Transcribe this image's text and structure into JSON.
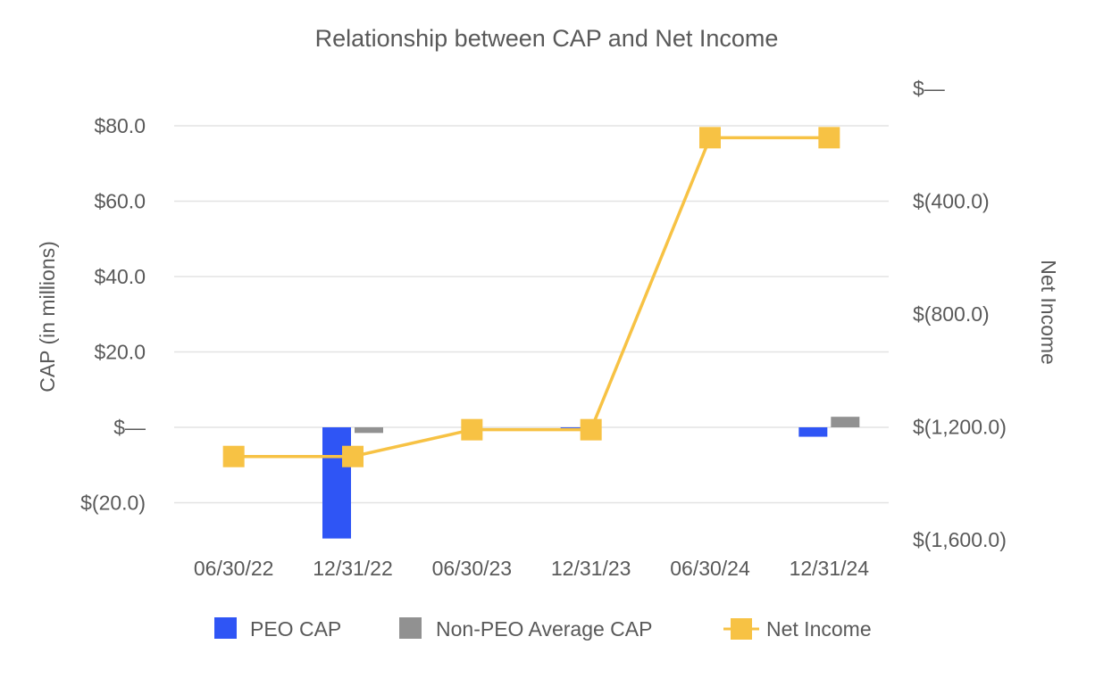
{
  "chart_data": {
    "type": "bar",
    "title": "Relationship between CAP and Net Income",
    "categories": [
      "06/30/22",
      "12/31/22",
      "06/30/23",
      "12/31/23",
      "06/30/24",
      "12/31/24"
    ],
    "y_left": {
      "label": "CAP (in millions)",
      "range": [
        -30,
        85
      ],
      "ticks": [
        -20,
        0,
        20,
        40,
        60,
        80
      ],
      "tick_labels": [
        "$(20.0)",
        "$—",
        "$20.0",
        "$40.0",
        "$60.0",
        "$80.0"
      ]
    },
    "y_right": {
      "label": "Net Income",
      "range": [
        -1600,
        0
      ],
      "ticks": [
        -1600,
        -1200,
        -800,
        -400,
        0
      ],
      "tick_labels": [
        "$(1,600.0)",
        "$(1,200.0)",
        "$(800.0)",
        "$(400.0)",
        "$—"
      ]
    },
    "series": [
      {
        "name": "PEO CAP",
        "type": "bar",
        "axis": "left",
        "color": "#2f55f5",
        "values": [
          0,
          -29.5,
          0,
          -0.4,
          0,
          -2.5
        ]
      },
      {
        "name": "Non-PEO Average CAP",
        "type": "bar",
        "axis": "left",
        "color": "#919191",
        "values": [
          0,
          -1.5,
          0,
          0,
          0,
          2.8
        ]
      },
      {
        "name": "Net Income",
        "type": "line",
        "axis": "right",
        "color": "#f7c244",
        "values": [
          -1305,
          -1305,
          -1210,
          -1210,
          -175,
          -175
        ]
      }
    ],
    "grid": true,
    "legend": "bottom"
  }
}
